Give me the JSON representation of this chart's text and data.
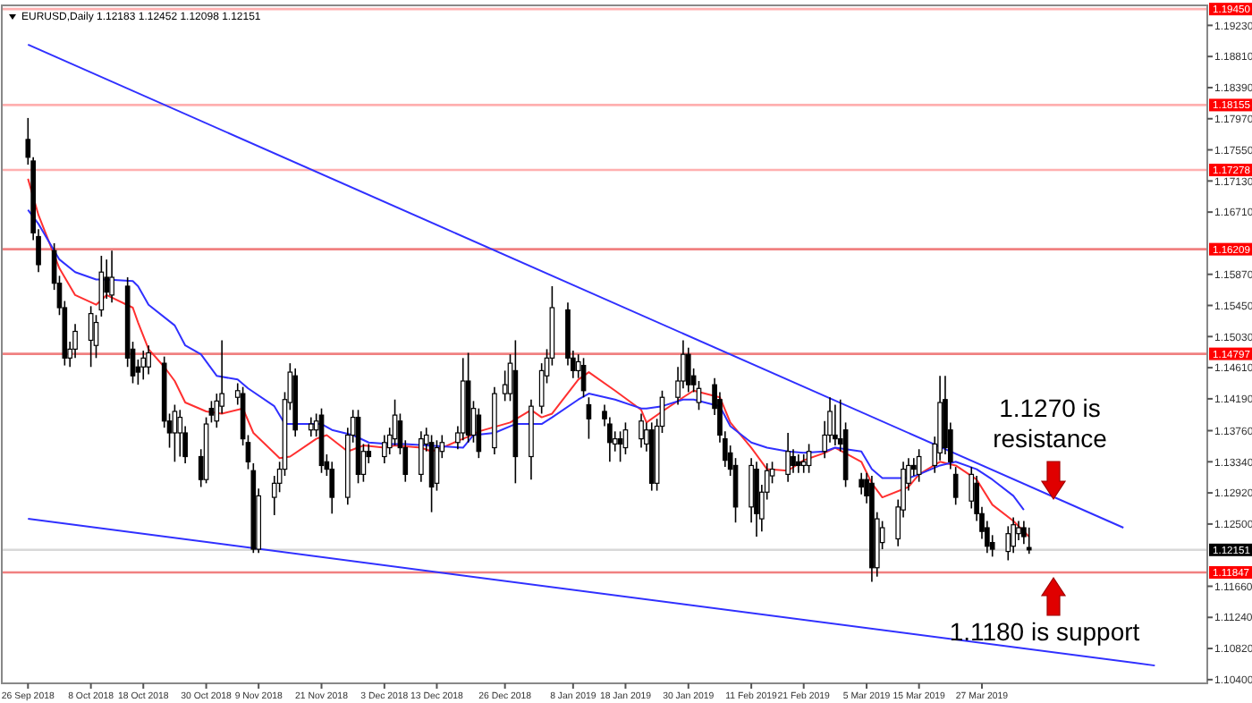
{
  "chart_data": {
    "type": "candlestick",
    "title": "EURUSD,Daily  1.12183 1.12452 1.12098 1.12151",
    "xlim": [
      "2018-09-21",
      "2019-05-09"
    ],
    "xticks": [
      {
        "value": "2018-09-26",
        "label": "26 Sep 2018"
      },
      {
        "value": "2018-10-08",
        "label": "8 Oct 2018"
      },
      {
        "value": "2018-10-18",
        "label": "18 Oct 2018"
      },
      {
        "value": "2018-10-30",
        "label": "30 Oct 2018"
      },
      {
        "value": "2018-11-09",
        "label": "9 Nov 2018"
      },
      {
        "value": "2018-11-21",
        "label": "21 Nov 2018"
      },
      {
        "value": "2018-12-03",
        "label": "3 Dec 2018"
      },
      {
        "value": "2018-12-13",
        "label": "13 Dec 2018"
      },
      {
        "value": "2018-12-26",
        "label": "26 Dec 2018"
      },
      {
        "value": "2019-01-08",
        "label": "8 Jan 2019"
      },
      {
        "value": "2019-01-18",
        "label": "18 Jan 2019"
      },
      {
        "value": "2019-01-30",
        "label": "30 Jan 2019"
      },
      {
        "value": "2019-02-11",
        "label": "11 Feb 2019"
      },
      {
        "value": "2019-02-21",
        "label": "21 Feb 2019"
      },
      {
        "value": "2019-03-05",
        "label": "5 Mar 2019"
      },
      {
        "value": "2019-03-15",
        "label": "15 Mar 2019"
      },
      {
        "value": "2019-03-27",
        "label": "27 Mar 2019"
      }
    ],
    "ylim": [
      1.1035,
      1.195
    ],
    "yticks": [
      {
        "value": 1.1923,
        "label": "1.19230"
      },
      {
        "value": 1.1881,
        "label": "1.18810"
      },
      {
        "value": 1.1839,
        "label": "1.18390"
      },
      {
        "value": 1.1797,
        "label": "1.17970"
      },
      {
        "value": 1.1755,
        "label": "1.17550"
      },
      {
        "value": 1.1713,
        "label": "1.17130"
      },
      {
        "value": 1.1671,
        "label": "1.16710"
      },
      {
        "value": 1.1587,
        "label": "1.15870"
      },
      {
        "value": 1.1545,
        "label": "1.15450"
      },
      {
        "value": 1.1503,
        "label": "1.15030"
      },
      {
        "value": 1.1461,
        "label": "1.14610"
      },
      {
        "value": 1.1419,
        "label": "1.14190"
      },
      {
        "value": 1.1376,
        "label": "1.13760"
      },
      {
        "value": 1.1334,
        "label": "1.13340"
      },
      {
        "value": 1.1292,
        "label": "1.12920"
      },
      {
        "value": 1.125,
        "label": "1.12500"
      },
      {
        "value": 1.1166,
        "label": "1.11660"
      },
      {
        "value": 1.1124,
        "label": "1.11240"
      },
      {
        "value": 1.1082,
        "label": "1.10820"
      },
      {
        "value": 1.104,
        "label": "1.10400"
      }
    ],
    "grid": false,
    "x": [
      "2018-09-26",
      "2018-09-27",
      "2018-09-28",
      "2018-10-01",
      "2018-10-02",
      "2018-10-03",
      "2018-10-04",
      "2018-10-05",
      "2018-10-08",
      "2018-10-09",
      "2018-10-10",
      "2018-10-11",
      "2018-10-12",
      "2018-10-15",
      "2018-10-16",
      "2018-10-17",
      "2018-10-18",
      "2018-10-19",
      "2018-10-22",
      "2018-10-23",
      "2018-10-24",
      "2018-10-25",
      "2018-10-26",
      "2018-10-29",
      "2018-10-30",
      "2018-10-31",
      "2018-11-01",
      "2018-11-02",
      "2018-11-05",
      "2018-11-06",
      "2018-11-07",
      "2018-11-08",
      "2018-11-09",
      "2018-11-12",
      "2018-11-13",
      "2018-11-14",
      "2018-11-15",
      "2018-11-16",
      "2018-11-19",
      "2018-11-20",
      "2018-11-21",
      "2018-11-22",
      "2018-11-23",
      "2018-11-26",
      "2018-11-27",
      "2018-11-28",
      "2018-11-29",
      "2018-11-30",
      "2018-12-03",
      "2018-12-04",
      "2018-12-05",
      "2018-12-06",
      "2018-12-07",
      "2018-12-10",
      "2018-12-11",
      "2018-12-12",
      "2018-12-13",
      "2018-12-14",
      "2018-12-17",
      "2018-12-18",
      "2018-12-19",
      "2018-12-20",
      "2018-12-21",
      "2018-12-24",
      "2018-12-26",
      "2018-12-27",
      "2018-12-28",
      "2018-12-31",
      "2019-01-02",
      "2019-01-03",
      "2019-01-04",
      "2019-01-07",
      "2019-01-08",
      "2019-01-09",
      "2019-01-10",
      "2019-01-11",
      "2019-01-14",
      "2019-01-15",
      "2019-01-16",
      "2019-01-17",
      "2019-01-18",
      "2019-01-21",
      "2019-01-22",
      "2019-01-23",
      "2019-01-24",
      "2019-01-25",
      "2019-01-28",
      "2019-01-29",
      "2019-01-30",
      "2019-01-31",
      "2019-02-01",
      "2019-02-04",
      "2019-02-05",
      "2019-02-06",
      "2019-02-07",
      "2019-02-08",
      "2019-02-11",
      "2019-02-12",
      "2019-02-13",
      "2019-02-14",
      "2019-02-15",
      "2019-02-18",
      "2019-02-19",
      "2019-02-20",
      "2019-02-21",
      "2019-02-22",
      "2019-02-25",
      "2019-02-26",
      "2019-02-27",
      "2019-02-28",
      "2019-03-01",
      "2019-03-04",
      "2019-03-05",
      "2019-03-06",
      "2019-03-07",
      "2019-03-08",
      "2019-03-11",
      "2019-03-12",
      "2019-03-13",
      "2019-03-14",
      "2019-03-15",
      "2019-03-18",
      "2019-03-19",
      "2019-03-20",
      "2019-03-21",
      "2019-03-22",
      "2019-03-25",
      "2019-03-26",
      "2019-03-27",
      "2019-03-28",
      "2019-03-29",
      "2019-04-01",
      "2019-04-02",
      "2019-04-03",
      "2019-04-04",
      "2019-04-05"
    ],
    "ohlc": [
      [
        1.1769,
        1.1798,
        1.1735,
        1.1745
      ],
      [
        1.174,
        1.1745,
        1.1633,
        1.1643
      ],
      [
        1.1638,
        1.1648,
        1.159,
        1.16
      ],
      [
        1.1619,
        1.1629,
        1.1566,
        1.1575
      ],
      [
        1.1575,
        1.1585,
        1.1532,
        1.1542
      ],
      [
        1.1542,
        1.1551,
        1.1464,
        1.1474
      ],
      [
        1.1474,
        1.1496,
        1.1462,
        1.1486
      ],
      [
        1.1486,
        1.152,
        1.1474,
        1.151
      ],
      [
        1.1498,
        1.1544,
        1.1462,
        1.1534
      ],
      [
        1.1491,
        1.1532,
        1.1474,
        1.1522
      ],
      [
        1.1539,
        1.1612,
        1.153,
        1.159
      ],
      [
        1.1583,
        1.1607,
        1.1554,
        1.1563
      ],
      [
        1.1559,
        1.1619,
        1.1549,
        1.1583
      ],
      [
        1.1571,
        1.1583,
        1.1462,
        1.1474
      ],
      [
        1.1486,
        1.1496,
        1.144,
        1.145
      ],
      [
        1.1462,
        1.1472,
        1.1438,
        1.1455
      ],
      [
        1.1462,
        1.1484,
        1.1445,
        1.1474
      ],
      [
        1.1462,
        1.1491,
        1.1452,
        1.1481
      ],
      [
        1.1467,
        1.1476,
        1.138,
        1.1389
      ],
      [
        1.1389,
        1.1399,
        1.1353,
        1.1373
      ],
      [
        1.1373,
        1.1411,
        1.1334,
        1.1402
      ],
      [
        1.1373,
        1.1404,
        1.1341,
        1.1394
      ],
      [
        1.1373,
        1.1382,
        1.1332,
        1.1341
      ],
      [
        1.1341,
        1.1351,
        1.13,
        1.131
      ],
      [
        1.131,
        1.1394,
        1.1305,
        1.1385
      ],
      [
        1.1406,
        1.1416,
        1.1387,
        1.1397
      ],
      [
        1.1389,
        1.1426,
        1.138,
        1.1416
      ],
      [
        1.1409,
        1.1498,
        1.1399,
        1.1426
      ],
      [
        1.1421,
        1.144,
        1.1411,
        1.143
      ],
      [
        1.1426,
        1.1435,
        1.1356,
        1.1365
      ],
      [
        1.136,
        1.137,
        1.1324,
        1.1334
      ],
      [
        1.1322,
        1.1332,
        1.1211,
        1.1216
      ],
      [
        1.1216,
        1.1298,
        1.1211,
        1.1288
      ],
      [
        1.1286,
        1.1315,
        1.1262,
        1.1305
      ],
      [
        1.1305,
        1.1334,
        1.1293,
        1.1324
      ],
      [
        1.1324,
        1.1428,
        1.1315,
        1.1418
      ],
      [
        1.1414,
        1.1467,
        1.1404,
        1.1455
      ],
      [
        1.145,
        1.146,
        1.1368,
        1.1377
      ],
      [
        1.1377,
        1.1394,
        1.1368,
        1.1385
      ],
      [
        1.1377,
        1.1399,
        1.1368,
        1.1389
      ],
      [
        1.1397,
        1.1406,
        1.1319,
        1.1329
      ],
      [
        1.1334,
        1.1344,
        1.1315,
        1.1324
      ],
      [
        1.1324,
        1.1334,
        1.1264,
        1.1286
      ],
      [
        1.1286,
        1.138,
        1.1276,
        1.137
      ],
      [
        1.137,
        1.1404,
        1.136,
        1.1394
      ],
      [
        1.1394,
        1.1404,
        1.1305,
        1.1317
      ],
      [
        1.1317,
        1.1358,
        1.1307,
        1.1348
      ],
      [
        1.1348,
        1.1358,
        1.1332,
        1.1341
      ],
      [
        1.1341,
        1.137,
        1.1332,
        1.136
      ],
      [
        1.1353,
        1.138,
        1.1344,
        1.137
      ],
      [
        1.1365,
        1.1418,
        1.1356,
        1.1397
      ],
      [
        1.1389,
        1.1399,
        1.1344,
        1.1353
      ],
      [
        1.1353,
        1.1363,
        1.1307,
        1.1317
      ],
      [
        1.1317,
        1.1375,
        1.1307,
        1.1365
      ],
      [
        1.1358,
        1.138,
        1.1348,
        1.137
      ],
      [
        1.136,
        1.137,
        1.1266,
        1.13
      ],
      [
        1.1305,
        1.1363,
        1.1295,
        1.1353
      ],
      [
        1.1348,
        1.137,
        1.1339,
        1.136
      ],
      [
        1.136,
        1.1382,
        1.1351,
        1.1373
      ],
      [
        1.1373,
        1.1474,
        1.1363,
        1.1443
      ],
      [
        1.1443,
        1.1481,
        1.136,
        1.137
      ],
      [
        1.137,
        1.1416,
        1.136,
        1.1406
      ],
      [
        1.1397,
        1.1406,
        1.1339,
        1.1348
      ],
      [
        1.1353,
        1.1435,
        1.1344,
        1.1426
      ],
      [
        1.1426,
        1.1457,
        1.1416,
        1.1438
      ],
      [
        1.1426,
        1.1479,
        1.1416,
        1.1467
      ],
      [
        1.1457,
        1.1498,
        1.1305,
        1.1341
      ],
      [
        1.1341,
        1.1418,
        1.131,
        1.1409
      ],
      [
        1.1409,
        1.1467,
        1.1399,
        1.1457
      ],
      [
        1.145,
        1.1486,
        1.144,
        1.1474
      ],
      [
        1.1474,
        1.1571,
        1.1464,
        1.1542
      ],
      [
        1.1539,
        1.1549,
        1.1464,
        1.1474
      ],
      [
        1.1474,
        1.1484,
        1.1447,
        1.1457
      ],
      [
        1.1457,
        1.1479,
        1.1447,
        1.1469
      ],
      [
        1.1464,
        1.1474,
        1.1421,
        1.143
      ],
      [
        1.1411,
        1.1421,
        1.1365,
        1.1392
      ],
      [
        1.1402,
        1.1411,
        1.1382,
        1.1392
      ],
      [
        1.1385,
        1.1394,
        1.1334,
        1.136
      ],
      [
        1.1358,
        1.1375,
        1.1348,
        1.1365
      ],
      [
        1.1365,
        1.1375,
        1.1334,
        1.1358
      ],
      [
        1.1353,
        1.1387,
        1.1344,
        1.1377
      ],
      [
        1.1365,
        1.1399,
        1.1353,
        1.1389
      ],
      [
        1.1358,
        1.1387,
        1.1348,
        1.1377
      ],
      [
        1.1377,
        1.1387,
        1.1295,
        1.1305
      ],
      [
        1.1305,
        1.1392,
        1.1295,
        1.1382
      ],
      [
        1.1382,
        1.143,
        1.1373,
        1.1421
      ],
      [
        1.1421,
        1.1462,
        1.1411,
        1.1443
      ],
      [
        1.1443,
        1.1498,
        1.1433,
        1.1479
      ],
      [
        1.1479,
        1.1488,
        1.1428,
        1.1438
      ],
      [
        1.145,
        1.146,
        1.1428,
        1.1438
      ],
      [
        1.1414,
        1.1443,
        1.1404,
        1.1433
      ],
      [
        1.1438,
        1.1447,
        1.1397,
        1.1406
      ],
      [
        1.1418,
        1.1428,
        1.136,
        1.137
      ],
      [
        1.1365,
        1.1375,
        1.1327,
        1.1336
      ],
      [
        1.1346,
        1.1356,
        1.1315,
        1.1324
      ],
      [
        1.1329,
        1.1339,
        1.1252,
        1.1273
      ],
      [
        1.1273,
        1.1339,
        1.1252,
        1.1329
      ],
      [
        1.1324,
        1.1334,
        1.1233,
        1.1264
      ],
      [
        1.1257,
        1.1303,
        1.124,
        1.1293
      ],
      [
        1.1293,
        1.1332,
        1.1283,
        1.1322
      ],
      [
        1.1315,
        1.1334,
        1.1305,
        1.1324
      ],
      [
        1.1317,
        1.1373,
        1.1307,
        1.1348
      ],
      [
        1.1341,
        1.1351,
        1.1319,
        1.1329
      ],
      [
        1.1334,
        1.1344,
        1.1319,
        1.1329
      ],
      [
        1.1329,
        1.1344,
        1.1319,
        1.1334
      ],
      [
        1.1329,
        1.1358,
        1.1319,
        1.1348
      ],
      [
        1.1348,
        1.1389,
        1.1339,
        1.137
      ],
      [
        1.137,
        1.1421,
        1.136,
        1.1402
      ],
      [
        1.137,
        1.1411,
        1.1356,
        1.1365
      ],
      [
        1.1365,
        1.1418,
        1.1348,
        1.1358
      ],
      [
        1.1377,
        1.1387,
        1.13,
        1.131
      ],
      [
        1.131,
        1.1319,
        1.129,
        1.13
      ],
      [
        1.131,
        1.1319,
        1.1278,
        1.1288
      ],
      [
        1.1305,
        1.1315,
        1.1172,
        1.1191
      ],
      [
        1.1191,
        1.1266,
        1.1179,
        1.1257
      ],
      [
        1.1225,
        1.1254,
        1.1216,
        1.1245
      ],
      [
        1.123,
        1.1283,
        1.122,
        1.1273
      ],
      [
        1.1269,
        1.1334,
        1.1259,
        1.1324
      ],
      [
        1.1305,
        1.1339,
        1.1295,
        1.1329
      ],
      [
        1.1329,
        1.1339,
        1.1315,
        1.1324
      ],
      [
        1.1317,
        1.1351,
        1.1307,
        1.1341
      ],
      [
        1.1329,
        1.1368,
        1.1319,
        1.1358
      ],
      [
        1.1346,
        1.145,
        1.1336,
        1.1414
      ],
      [
        1.1418,
        1.145,
        1.1344,
        1.1353
      ],
      [
        1.1377,
        1.1387,
        1.1324,
        1.1334
      ],
      [
        1.1317,
        1.1327,
        1.1276,
        1.1286
      ],
      [
        1.1281,
        1.1327,
        1.1271,
        1.1317
      ],
      [
        1.1305,
        1.1315,
        1.1254,
        1.1264
      ],
      [
        1.1264,
        1.1273,
        1.123,
        1.124
      ],
      [
        1.1245,
        1.1254,
        1.1211,
        1.122
      ],
      [
        1.1225,
        1.1235,
        1.1206,
        1.1216
      ],
      [
        1.1213,
        1.1247,
        1.1201,
        1.1237
      ],
      [
        1.122,
        1.1259,
        1.1211,
        1.1249
      ],
      [
        1.1237,
        1.1254,
        1.1228,
        1.1245
      ],
      [
        1.1245,
        1.1254,
        1.1223,
        1.1233
      ],
      [
        1.12183,
        1.12452,
        1.12098,
        1.12151
      ]
    ],
    "series": [
      {
        "type": "line",
        "color": "#ff3030",
        "x": [
          "2018-09-26",
          "2018-09-28",
          "2018-10-02",
          "2018-10-05",
          "2018-10-09",
          "2018-10-11",
          "2018-10-16",
          "2018-10-17",
          "2018-10-19",
          "2018-10-22",
          "2018-10-24",
          "2018-10-26",
          "2018-10-30",
          "2018-11-02",
          "2018-11-06",
          "2018-11-08",
          "2018-11-13",
          "2018-11-15",
          "2018-11-20",
          "2018-11-22",
          "2018-11-26",
          "2018-11-29",
          "2018-12-03",
          "2018-12-05",
          "2018-12-10",
          "2018-12-12",
          "2018-12-14",
          "2018-12-19",
          "2018-12-21",
          "2018-12-27",
          "2018-12-31",
          "2019-01-02",
          "2019-01-04",
          "2019-01-09",
          "2019-01-11",
          "2019-01-16",
          "2019-01-21",
          "2019-01-22",
          "2019-01-25",
          "2019-01-29",
          "2019-01-31",
          "2019-02-05",
          "2019-02-07",
          "2019-02-11",
          "2019-02-14",
          "2019-02-18",
          "2019-02-21",
          "2019-02-25",
          "2019-02-27",
          "2019-03-04",
          "2019-03-06",
          "2019-03-08",
          "2019-03-13",
          "2019-03-15",
          "2019-03-19",
          "2019-03-22",
          "2019-03-26",
          "2019-03-29",
          "2019-04-02",
          "2019-04-04",
          "2019-04-05"
        ],
        "values": [
          1.1716,
          1.1667,
          1.1595,
          1.1559,
          1.1546,
          1.1559,
          1.1542,
          1.1522,
          1.1486,
          1.1462,
          1.1443,
          1.1414,
          1.1402,
          1.1399,
          1.1406,
          1.1373,
          1.1339,
          1.1341,
          1.1365,
          1.137,
          1.1348,
          1.1356,
          1.1353,
          1.1356,
          1.1353,
          1.1348,
          1.1353,
          1.1368,
          1.1375,
          1.1387,
          1.1404,
          1.1394,
          1.1399,
          1.1445,
          1.1455,
          1.143,
          1.1404,
          1.1387,
          1.1402,
          1.1421,
          1.143,
          1.1421,
          1.1387,
          1.1353,
          1.1324,
          1.1322,
          1.1336,
          1.1346,
          1.1353,
          1.1334,
          1.1305,
          1.1286,
          1.13,
          1.1317,
          1.1334,
          1.1329,
          1.131,
          1.1276,
          1.1254,
          1.124,
          1.1233
        ]
      },
      {
        "type": "line",
        "color": "#3030ff",
        "x": [
          "2018-09-26",
          "2018-09-28",
          "2018-10-02",
          "2018-10-05",
          "2018-10-09",
          "2018-10-11",
          "2018-10-16",
          "2018-10-17",
          "2018-10-19",
          "2018-10-24",
          "2018-10-26",
          "2018-10-29",
          "2018-11-01",
          "2018-11-05",
          "2018-11-07",
          "2018-11-12",
          "2018-11-14",
          "2018-11-16",
          "2018-11-21",
          "2018-11-23",
          "2018-11-27",
          "2018-11-30",
          "2018-12-04",
          "2018-12-07",
          "2018-12-11",
          "2018-12-18",
          "2018-12-20",
          "2018-12-24",
          "2018-12-28",
          "2019-01-02",
          "2019-01-04",
          "2019-01-09",
          "2019-01-11",
          "2019-01-16",
          "2019-01-21",
          "2019-01-22",
          "2019-01-25",
          "2019-01-29",
          "2019-01-31",
          "2019-02-05",
          "2019-02-07",
          "2019-02-11",
          "2019-02-14",
          "2019-02-18",
          "2019-02-21",
          "2019-02-25",
          "2019-02-27",
          "2019-03-04",
          "2019-03-06",
          "2019-03-08",
          "2019-03-13",
          "2019-03-15",
          "2019-03-19",
          "2019-03-22",
          "2019-03-26",
          "2019-03-29",
          "2019-04-02",
          "2019-04-04"
        ],
        "values": [
          1.1674,
          1.1655,
          1.1607,
          1.159,
          1.158,
          1.158,
          1.1578,
          1.1571,
          1.1546,
          1.1518,
          1.1491,
          1.1479,
          1.145,
          1.1445,
          1.1433,
          1.1409,
          1.1385,
          1.1385,
          1.1385,
          1.1377,
          1.137,
          1.136,
          1.1358,
          1.1358,
          1.1356,
          1.1353,
          1.137,
          1.1373,
          1.1385,
          1.1385,
          1.1394,
          1.1418,
          1.1426,
          1.1418,
          1.1406,
          1.1406,
          1.1409,
          1.1418,
          1.1418,
          1.1409,
          1.1382,
          1.136,
          1.1353,
          1.1348,
          1.1346,
          1.1348,
          1.1353,
          1.1348,
          1.1324,
          1.1312,
          1.1312,
          1.1317,
          1.1329,
          1.1334,
          1.1324,
          1.131,
          1.1288,
          1.1269
        ]
      },
      {
        "type": "line",
        "color": "#3030ff",
        "x": [
          "2018-09-26",
          "2019-04-23"
        ],
        "values": [
          1.1897,
          1.1245
        ]
      },
      {
        "type": "line",
        "color": "#3030ff",
        "x": [
          "2018-09-26",
          "2019-04-29"
        ],
        "values": [
          1.1257,
          1.1059
        ]
      }
    ],
    "ref_lines": [
      {
        "axis": "y",
        "value": 1.1945,
        "label": "1.19450",
        "color": "#ffb0b0"
      },
      {
        "axis": "y",
        "value": 1.18155,
        "label": "1.18155",
        "color": "#ffb0b0"
      },
      {
        "axis": "y",
        "value": 1.17278,
        "label": "1.17278",
        "color": "#ffb0b0"
      },
      {
        "axis": "y",
        "value": 1.16209,
        "label": "1.16209",
        "color": "#f08080"
      },
      {
        "axis": "y",
        "value": 1.14797,
        "label": "1.14797",
        "color": "#f08080"
      },
      {
        "axis": "y",
        "value": 1.11847,
        "label": "1.11847",
        "color": "#f08080"
      },
      {
        "axis": "y",
        "value": 1.12151,
        "label": "1.12151",
        "color": "#d8d8d8"
      }
    ],
    "annotations": [
      "1.1270 is resistance",
      "1.1180 is support"
    ]
  }
}
